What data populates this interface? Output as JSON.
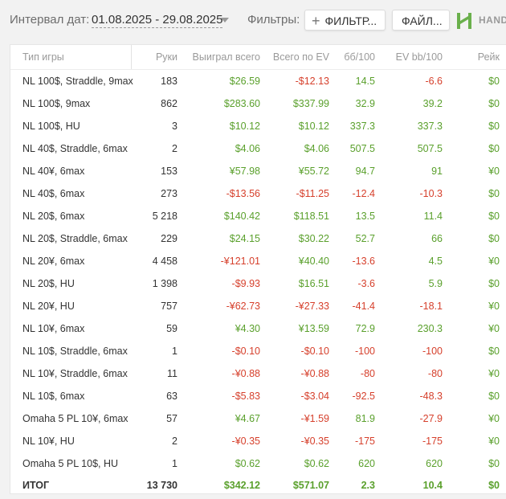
{
  "header": {
    "interval_label": "Интервал дат:",
    "interval_value": "01.08.2025 - 29.08.2025",
    "filters_label": "Фильтры:",
    "filter_button": "ФИЛЬТР...",
    "file_button": "ФАЙЛ...",
    "logo_text": "HAND"
  },
  "colors": {
    "positive": "#5aa02c",
    "negative": "#d6402c",
    "logo_green": "#6ab04c"
  },
  "table": {
    "columns": [
      "Тип игры",
      "Руки",
      "Выиграл всего",
      "Всего по EV",
      "бб/100",
      "EV bb/100",
      "Рейк"
    ],
    "rows": [
      [
        "NL 100$, Straddle, 9max",
        "183",
        "$26.59",
        "-$12.13",
        "14.5",
        "-6.6",
        "$0"
      ],
      [
        "NL 100$, 9max",
        "862",
        "$283.60",
        "$337.99",
        "32.9",
        "39.2",
        "$0"
      ],
      [
        "NL 100$, HU",
        "3",
        "$10.12",
        "$10.12",
        "337.3",
        "337.3",
        "$0"
      ],
      [
        "NL 40$, Straddle, 6max",
        "2",
        "$4.06",
        "$4.06",
        "507.5",
        "507.5",
        "$0"
      ],
      [
        "NL 40¥, 6max",
        "153",
        "¥57.98",
        "¥55.72",
        "94.7",
        "91",
        "¥0"
      ],
      [
        "NL 40$, 6max",
        "273",
        "-$13.56",
        "-$11.25",
        "-12.4",
        "-10.3",
        "$0"
      ],
      [
        "NL 20$, 6max",
        "5 218",
        "$140.42",
        "$118.51",
        "13.5",
        "11.4",
        "$0"
      ],
      [
        "NL 20$, Straddle, 6max",
        "229",
        "$24.15",
        "$30.22",
        "52.7",
        "66",
        "$0"
      ],
      [
        "NL 20¥, 6max",
        "4 458",
        "-¥121.01",
        "¥40.40",
        "-13.6",
        "4.5",
        "¥0"
      ],
      [
        "NL 20$, HU",
        "1 398",
        "-$9.93",
        "$16.51",
        "-3.6",
        "5.9",
        "$0"
      ],
      [
        "NL 20¥, HU",
        "757",
        "-¥62.73",
        "-¥27.33",
        "-41.4",
        "-18.1",
        "¥0"
      ],
      [
        "NL 10¥, 6max",
        "59",
        "¥4.30",
        "¥13.59",
        "72.9",
        "230.3",
        "¥0"
      ],
      [
        "NL 10$, Straddle, 6max",
        "1",
        "-$0.10",
        "-$0.10",
        "-100",
        "-100",
        "$0"
      ],
      [
        "NL 10¥, Straddle, 6max",
        "11",
        "-¥0.88",
        "-¥0.88",
        "-80",
        "-80",
        "¥0"
      ],
      [
        "NL 10$, 6max",
        "63",
        "-$5.83",
        "-$3.04",
        "-92.5",
        "-48.3",
        "$0"
      ],
      [
        "Omaha 5 PL 10¥, 6max",
        "57",
        "¥4.67",
        "-¥1.59",
        "81.9",
        "-27.9",
        "¥0"
      ],
      [
        "NL 10¥, HU",
        "2",
        "-¥0.35",
        "-¥0.35",
        "-175",
        "-175",
        "¥0"
      ],
      [
        "Omaha 5 PL 10$, HU",
        "1",
        "$0.62",
        "$0.62",
        "620",
        "620",
        "$0"
      ]
    ],
    "total": [
      "ИТОГ",
      "13 730",
      "$342.12",
      "$571.07",
      "2.3",
      "10.4",
      "$0"
    ]
  }
}
